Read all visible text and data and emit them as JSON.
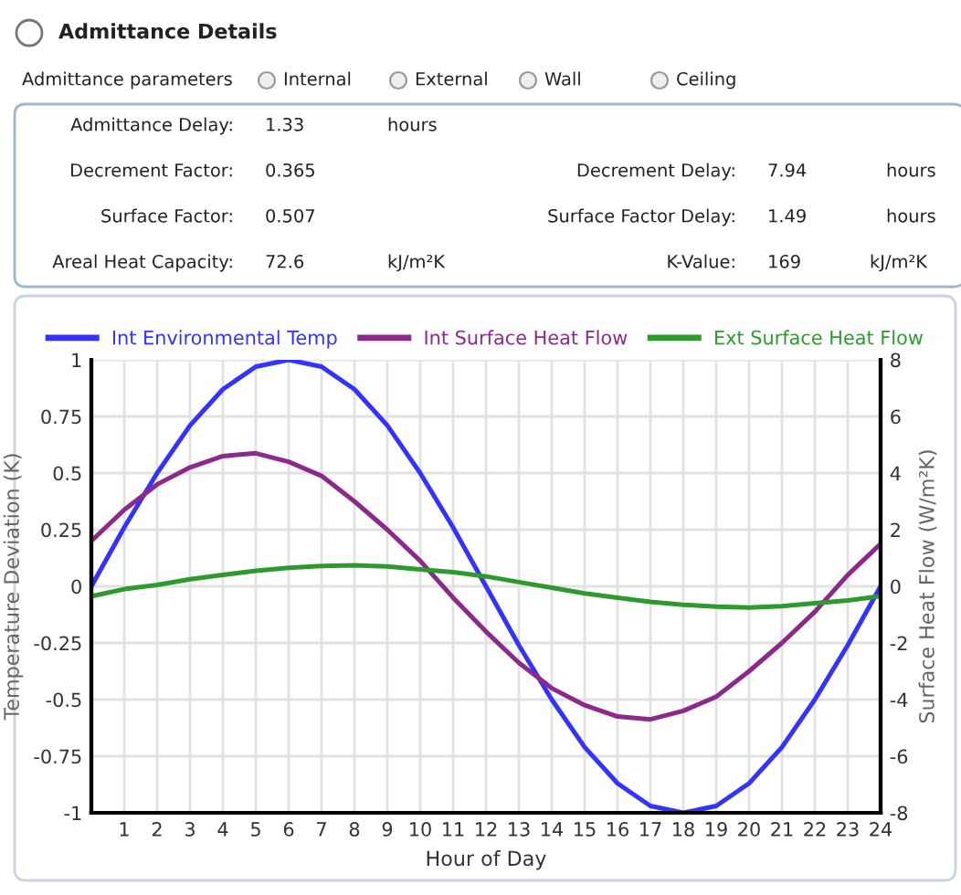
{
  "chart_data": [
    {
      "type": "other",
      "annotations": [
        "Admittance Details",
        "Admittance parameters",
        "Internal",
        "External",
        "Wall",
        "Ceiling",
        "Admittance Delay:",
        "1.33",
        "hours",
        "Decrement Factor:",
        "0.365",
        "Decrement Delay:",
        "7.94",
        "hours",
        "Surface Factor:",
        "0.507",
        "Surface Factor Delay:",
        "1.49",
        "hours",
        "Areal Heat Capacity:",
        "72.6",
        "kJ/m²K",
        "K-Value:",
        "169",
        "kJ/m²K"
      ]
    },
    {
      "type": "line",
      "xlabel": "Hour of Day",
      "ylabel": "Temperature Deviation (K)",
      "y2label": "Surface Heat Flow (W/m²K)",
      "x": [
        0,
        1,
        2,
        3,
        4,
        5,
        6,
        7,
        8,
        9,
        10,
        11,
        12,
        13,
        14,
        15,
        16,
        17,
        18,
        19,
        20,
        21,
        22,
        23,
        24
      ],
      "xlim": [
        0,
        24
      ],
      "xticks": [
        1,
        2,
        3,
        4,
        5,
        6,
        7,
        8,
        9,
        10,
        11,
        12,
        13,
        14,
        15,
        16,
        17,
        18,
        19,
        20,
        21,
        22,
        23,
        24
      ],
      "ylim": [
        -1,
        1
      ],
      "yticks": [
        -1,
        -0.75,
        -0.5,
        -0.25,
        0,
        0.25,
        0.5,
        0.75,
        1
      ],
      "y2lim": [
        -8,
        8
      ],
      "y2ticks": [
        -8,
        -6,
        -4,
        -2,
        0,
        2,
        4,
        6,
        8
      ],
      "grid": true,
      "legend": "top",
      "marker": "none",
      "line_style": "solid",
      "series": [
        {
          "name": "Int Environmental Temp",
          "color": "#3333ff",
          "values": [
            0,
            0.26,
            0.5,
            0.71,
            0.87,
            0.97,
            1,
            0.97,
            0.87,
            0.71,
            0.5,
            0.26,
            0,
            -0.26,
            -0.5,
            -0.71,
            -0.87,
            -0.97,
            -1,
            -0.97,
            -0.87,
            -0.71,
            -0.5,
            -0.26,
            0
          ]
        },
        {
          "name": "Int Surface Heat Flow",
          "color": "#8b2a8b",
          "axis": "y2",
          "values": [
            1.6,
            2.7,
            3.6,
            4.2,
            4.6,
            4.7,
            4.4,
            3.9,
            3.0,
            2.0,
            0.9,
            -0.4,
            -1.6,
            -2.7,
            -3.6,
            -4.2,
            -4.6,
            -4.7,
            -4.4,
            -3.9,
            -3.0,
            -2.0,
            -0.9,
            0.4,
            1.5
          ]
        },
        {
          "name": "Ext Surface Heat Flow",
          "color": "#2e9a2e",
          "axis": "y2",
          "values": [
            -0.35,
            -0.1,
            0.05,
            0.25,
            0.4,
            0.55,
            0.65,
            0.72,
            0.74,
            0.7,
            0.6,
            0.5,
            0.35,
            0.15,
            -0.05,
            -0.25,
            -0.4,
            -0.55,
            -0.65,
            -0.72,
            -0.75,
            -0.7,
            -0.6,
            -0.5,
            -0.35
          ]
        }
      ]
    }
  ]
}
